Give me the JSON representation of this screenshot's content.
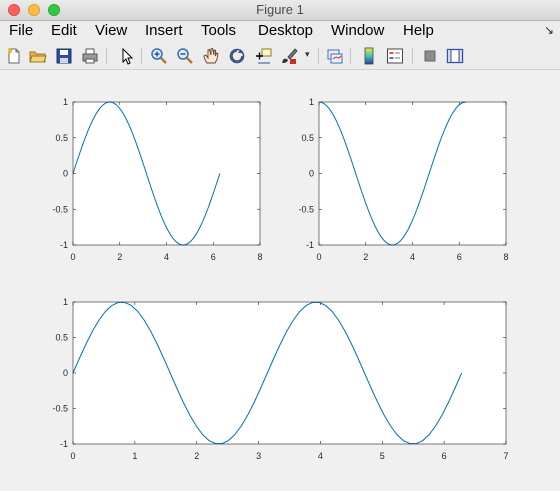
{
  "window": {
    "title": "Figure 1"
  },
  "menu": {
    "items": [
      "File",
      "Edit",
      "View",
      "Insert",
      "Tools",
      "Desktop",
      "Window",
      "Help"
    ],
    "overflow_arrow": "↘"
  },
  "toolbar": {
    "buttons": [
      "new-figure-icon",
      "open-file-icon",
      "save-icon",
      "print-icon",
      "pointer-icon",
      "zoom-in-icon",
      "zoom-out-icon",
      "pan-hand-icon",
      "rotate-3d-icon",
      "data-cursor-icon",
      "brush-icon",
      "link-plot-icon",
      "colorbar-icon",
      "legend-icon",
      "hide-plot-tools-icon",
      "show-plot-tools-icon"
    ],
    "brush_dropdown_arrow": "▾"
  },
  "chart_data": [
    {
      "type": "line",
      "title": "",
      "xlabel": "",
      "ylabel": "",
      "xlim": [
        0,
        8
      ],
      "ylim": [
        -1,
        1
      ],
      "xticks": [
        "0",
        "2",
        "4",
        "6",
        "8"
      ],
      "yticks": [
        "1",
        "0.5",
        "0",
        "-0.5",
        "-1"
      ],
      "grid": false,
      "series": [
        {
          "function": "sin(x)",
          "x_start": 0,
          "x_end": 6.2832,
          "color": "#0072bd"
        }
      ]
    },
    {
      "type": "line",
      "title": "",
      "xlabel": "",
      "ylabel": "",
      "xlim": [
        0,
        8
      ],
      "ylim": [
        -1,
        1
      ],
      "xticks": [
        "0",
        "2",
        "4",
        "6",
        "8"
      ],
      "yticks": [
        "1",
        "0.5",
        "0",
        "-0.5",
        "-1"
      ],
      "grid": false,
      "series": [
        {
          "function": "cos(x)",
          "x_start": 0,
          "x_end": 6.2832,
          "color": "#0072bd"
        }
      ]
    },
    {
      "type": "line",
      "title": "",
      "xlabel": "",
      "ylabel": "",
      "xlim": [
        0,
        7
      ],
      "ylim": [
        -1,
        1
      ],
      "xticks": [
        "0",
        "1",
        "2",
        "3",
        "4",
        "5",
        "6",
        "7"
      ],
      "yticks": [
        "1",
        "0.5",
        "0",
        "-0.5",
        "-1"
      ],
      "grid": false,
      "series": [
        {
          "function": "sin(2x)",
          "x_start": 0,
          "x_end": 6.2832,
          "color": "#0072bd"
        }
      ]
    }
  ]
}
